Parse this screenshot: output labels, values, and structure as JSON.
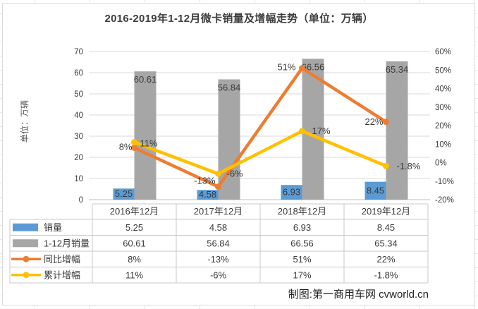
{
  "title": "2016-2019年1-12月微卡销量及增幅走势（单位：万辆）",
  "y_axis_title": "单位：万辆",
  "credit": "制图:第一商用车网 cvworld.cn",
  "colors": {
    "bar_sales": "#5B9BD5",
    "bar_cumulative": "#A6A6A6",
    "line_yoy": "#ED7D31",
    "line_cum_growth": "#FFC000",
    "gridline": "#D9D9D9",
    "axis_line": "#BFBFBF",
    "tick_text": "#595959",
    "table_border": "#C8C8C8",
    "table_text": "#4a4a4a",
    "label_text": "#3a3a3a"
  },
  "chart_data": {
    "type": "combo bar+line",
    "categories": [
      "2016年12月",
      "2017年12月",
      "2018年12月",
      "2019年12月"
    ],
    "left_axis": {
      "min": 0,
      "max": 70,
      "step": 10,
      "ticks": [
        "0",
        "10",
        "20",
        "30",
        "40",
        "50",
        "60",
        "70"
      ]
    },
    "right_axis": {
      "min": -20,
      "max": 60,
      "step": 10,
      "ticks": [
        "-20%",
        "-10%",
        "0%",
        "10%",
        "20%",
        "30%",
        "40%",
        "50%",
        "60%"
      ]
    },
    "grid": true,
    "legend_position": "data-table-left-column",
    "series": [
      {
        "name": "销量",
        "type": "bar",
        "axis": "left",
        "color": "#5B9BD5",
        "values": [
          5.25,
          4.58,
          6.93,
          8.45
        ],
        "labels": [
          "5.25",
          "4.58",
          "6.93",
          "8.45"
        ]
      },
      {
        "name": "1-12月销量",
        "type": "bar",
        "axis": "left",
        "color": "#A6A6A6",
        "values": [
          60.61,
          56.84,
          66.56,
          65.34
        ],
        "labels": [
          "60.61",
          "56.84",
          "66.56",
          "65.34"
        ]
      },
      {
        "name": "同比增幅",
        "type": "line",
        "axis": "right",
        "color": "#ED7D31",
        "values": [
          8,
          -13,
          51,
          22
        ],
        "labels": [
          "8%",
          "-13%",
          "51%",
          "22%"
        ]
      },
      {
        "name": "累计增幅",
        "type": "line",
        "axis": "right",
        "color": "#FFC000",
        "values": [
          11,
          -6,
          17,
          -1.8
        ],
        "labels": [
          "11%",
          "-6%",
          "17%",
          "-1.8%"
        ]
      }
    ]
  }
}
